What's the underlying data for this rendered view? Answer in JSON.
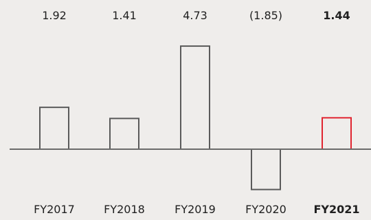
{
  "chart_data": {
    "type": "bar",
    "categories": [
      "FY2017",
      "FY2018",
      "FY2019",
      "FY2020",
      "FY2021"
    ],
    "values": [
      1.92,
      1.41,
      4.73,
      -1.85,
      1.44
    ],
    "data_labels": [
      "1.92",
      "1.41",
      "4.73",
      "(1.85)",
      "1.44"
    ],
    "highlight_index": 4,
    "colors": {
      "bar_stroke": "#5a5a5a",
      "highlight_stroke": "#e0242f",
      "axis": "#6b6b6b",
      "background": "#efedeb",
      "text": "#1f1f1f"
    },
    "grid": false,
    "legend": "none"
  }
}
